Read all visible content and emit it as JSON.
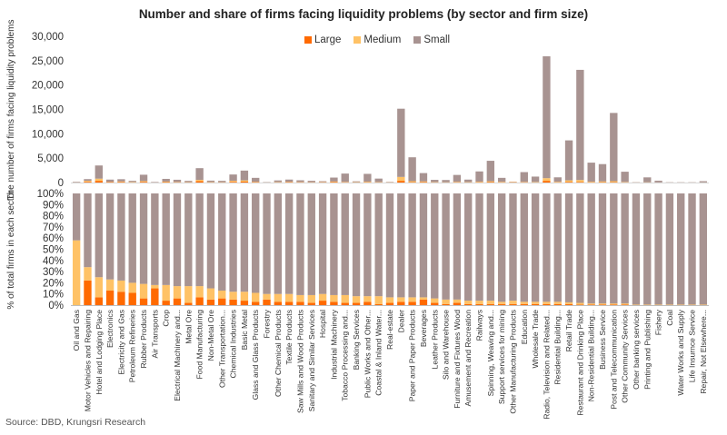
{
  "chart_data": [
    {
      "type": "bar",
      "stacked": true,
      "title": "Number and share of firms facing liquidity problems (by sector and firm size)",
      "ylabel": "The number of firms facing liquidity problems",
      "ylim": [
        0,
        30000
      ],
      "yticks": [
        "30,000",
        "25,000",
        "20,000",
        "15,000",
        "10,000",
        "5,000",
        "0"
      ],
      "ytick_values": [
        30000,
        25000,
        20000,
        15000,
        10000,
        5000,
        0
      ],
      "legend": [
        "Large",
        "Medium",
        "Small"
      ],
      "legend_position": "top-center",
      "series": [
        {
          "name": "Large",
          "color": "#FF6A00",
          "values": [
            5,
            150,
            350,
            90,
            110,
            40,
            150,
            10,
            90,
            60,
            40,
            300,
            50,
            40,
            150,
            200,
            80,
            10,
            40,
            80,
            60,
            40,
            60,
            100,
            60,
            40,
            60,
            50,
            20,
            350,
            80,
            120,
            40,
            30,
            60,
            40,
            60,
            100,
            60,
            60,
            60,
            40,
            350,
            50,
            150,
            120,
            60,
            80,
            80,
            40,
            10,
            20,
            10,
            5,
            5,
            5,
            5
          ]
        },
        {
          "name": "Medium",
          "color": "#FFC266",
          "values": [
            30,
            200,
            450,
            60,
            120,
            80,
            150,
            20,
            110,
            60,
            50,
            250,
            60,
            40,
            200,
            250,
            80,
            20,
            70,
            80,
            60,
            40,
            60,
            120,
            80,
            60,
            120,
            60,
            40,
            800,
            200,
            120,
            60,
            40,
            100,
            60,
            120,
            160,
            100,
            80,
            80,
            80,
            550,
            120,
            300,
            400,
            120,
            150,
            200,
            80,
            20,
            40,
            20,
            10,
            10,
            10,
            20
          ]
        },
        {
          "name": "Small",
          "color": "#A89391",
          "values": [
            120,
            350,
            2700,
            450,
            450,
            230,
            1300,
            100,
            550,
            450,
            250,
            2400,
            280,
            270,
            1300,
            2000,
            800,
            70,
            320,
            450,
            340,
            280,
            150,
            800,
            1700,
            150,
            1600,
            700,
            80,
            14000,
            4900,
            1700,
            450,
            450,
            1400,
            500,
            2100,
            4200,
            800,
            50,
            2000,
            1100,
            25000,
            900,
            8200,
            22600,
            3900,
            3550,
            14000,
            2100,
            50,
            1000,
            350,
            50,
            50,
            50,
            250
          ]
        }
      ],
      "grid": false
    },
    {
      "type": "bar",
      "stacked": true,
      "percent": true,
      "ylabel": "% of total firms in each sector",
      "ylim": [
        0,
        100
      ],
      "yticks": [
        "100%",
        "90%",
        "80%",
        "70%",
        "60%",
        "50%",
        "40%",
        "30%",
        "20%",
        "10%",
        "0%"
      ],
      "ytick_values": [
        100,
        90,
        80,
        70,
        60,
        50,
        40,
        30,
        20,
        10,
        0
      ],
      "categories": [
        "Oil and Gas",
        "Motor Vehicles and Repairing",
        "Hotel and Lodging Place",
        "Electronics",
        "Electricity and Gas",
        "Petroleum Refineries",
        "Rubber Products",
        "Air Transports",
        "Crop",
        "Electrical Machinery and...",
        "Metal Ore",
        "Food Manufacturing",
        "Non-Metal Ore",
        "Other Transportation...",
        "Chemical Industries",
        "Basic Metal",
        "Glass and Glass Products",
        "Forestry",
        "Other Chemical Products",
        "Textile Products",
        "Saw Mills and Wood Products",
        "Sanitary and Similar Services",
        "Hospital",
        "Industrial Machinery",
        "Tobacco Processing and...",
        "Banking Services",
        "Public Works and Other...",
        "Coastal & Inland Water...",
        "Real-estate",
        "Dealer",
        "Paper and Paper Products",
        "Beverages",
        "Leather Products",
        "Silo and Warehouse",
        "Furniture and Fixtures Wood",
        "Amusement and Recreation",
        "Railways",
        "Spinning, Weaving and...",
        "Support services for mining",
        "Other Manufacturing Products",
        "Education",
        "Wholesale Trade",
        "Radio, Television and Related...",
        "Residential Building...",
        "Retail Trade",
        "Restaurant and Drinking Place",
        "Non-Residential Building...",
        "Business Service",
        "Post and Telecommunication",
        "Other Community Services",
        "Other banking services",
        "Printing and Publishing",
        "Fishery",
        "Coal",
        "Water Works and Supply",
        "Life Insurnce Service",
        "Repair, Not Elsewhere..."
      ],
      "series": [
        {
          "name": "Large",
          "color": "#FF6A00",
          "values": [
            0,
            22,
            7,
            13,
            12,
            11,
            6,
            15,
            4,
            6,
            2,
            7,
            5,
            6,
            5,
            4,
            3,
            5,
            3,
            3,
            3,
            2,
            4,
            3,
            2,
            2,
            3,
            1,
            2,
            3,
            3,
            5,
            2,
            1,
            2,
            1,
            1,
            1,
            1,
            1,
            1,
            1,
            1,
            1,
            1,
            0.5,
            0.5,
            0.5,
            0.5,
            0.5,
            0,
            0,
            0,
            0,
            0,
            0,
            0
          ]
        },
        {
          "name": "Medium",
          "color": "#FFC266",
          "values": [
            58,
            12,
            18,
            10,
            10,
            9,
            13,
            3,
            14,
            11,
            15,
            10,
            10,
            7,
            7,
            8,
            8,
            5,
            7,
            7,
            6,
            7,
            6,
            6,
            7,
            6,
            5,
            7,
            5,
            4,
            4,
            2,
            4,
            4,
            3,
            3,
            3,
            3,
            2,
            3,
            2,
            2,
            2,
            2,
            1.5,
            1.5,
            1,
            1,
            1,
            1,
            0.5,
            0.5,
            0.5,
            0.5,
            0.5,
            0.5,
            0.5
          ]
        },
        {
          "name": "Small",
          "color": "#A89391",
          "values": [
            42,
            66,
            75,
            77,
            78,
            80,
            81,
            82,
            82,
            83,
            83,
            83,
            85,
            87,
            88,
            88,
            89,
            90,
            90,
            90,
            91,
            91,
            90,
            91,
            91,
            92,
            92,
            92,
            93,
            93,
            93,
            93,
            94,
            95,
            95,
            96,
            96,
            96,
            97,
            96,
            97,
            97,
            97,
            97,
            97.5,
            98,
            98.5,
            98.5,
            98.5,
            98.5,
            99.5,
            99.5,
            99.5,
            99.5,
            99.5,
            99.5,
            99.5
          ]
        }
      ],
      "grid": false
    }
  ],
  "source": "Source: DBD, Krungsri Research"
}
